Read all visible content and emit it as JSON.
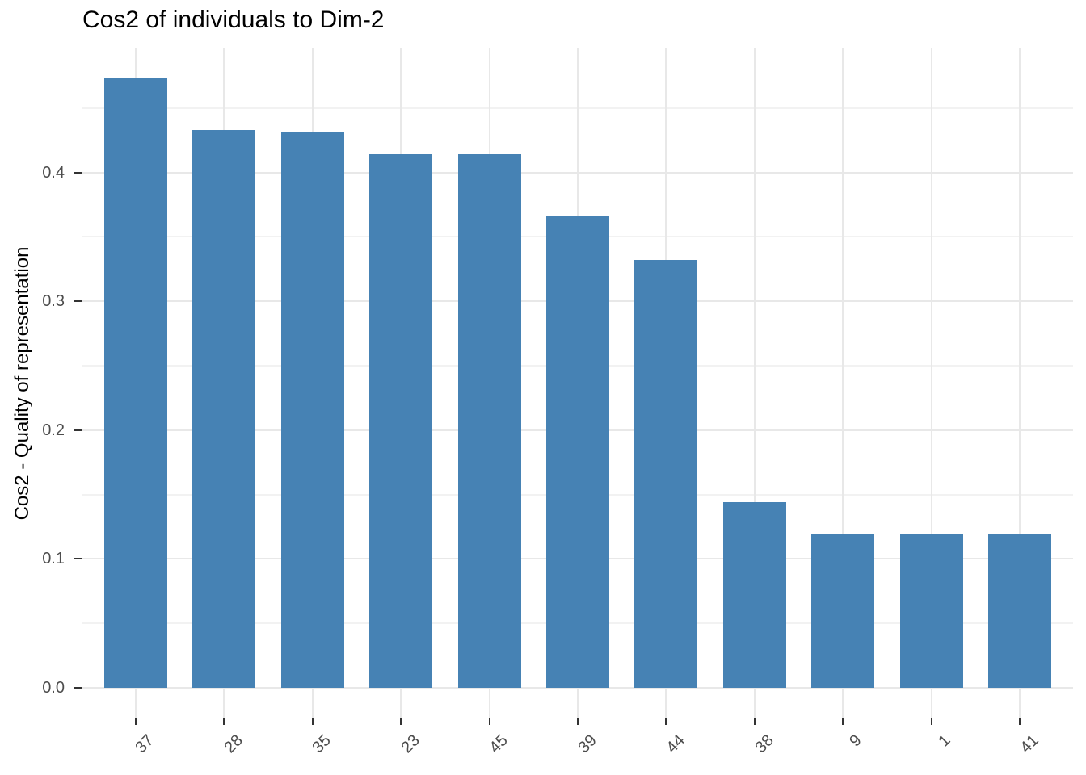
{
  "chart_data": {
    "type": "bar",
    "title": "Cos2 of individuals to Dim-2",
    "xlabel": "",
    "ylabel": "Cos2 - Quality of representation",
    "categories": [
      "37",
      "28",
      "35",
      "23",
      "45",
      "39",
      "44",
      "38",
      "9",
      "1",
      "41"
    ],
    "values": [
      0.473,
      0.433,
      0.431,
      0.414,
      0.414,
      0.366,
      0.332,
      0.144,
      0.119,
      0.119,
      0.119
    ],
    "ytick_labels": [
      "0.0",
      "0.1",
      "0.2",
      "0.3",
      "0.4"
    ],
    "yticks": [
      0.0,
      0.1,
      0.2,
      0.3,
      0.4
    ],
    "ylim": [
      -0.024,
      0.496
    ],
    "grid": "major and minor horizontal, major vertical at category centers",
    "legend_position": "none",
    "bar_color": "#4682B4",
    "grid_major_color": "#E8E8E8",
    "grid_minor_color": "#F2F2F2",
    "axis_text_color": "#4D4D4D",
    "tick_mark_color": "#333333",
    "title_color": "#000000",
    "x_label_angle_deg": -45
  }
}
